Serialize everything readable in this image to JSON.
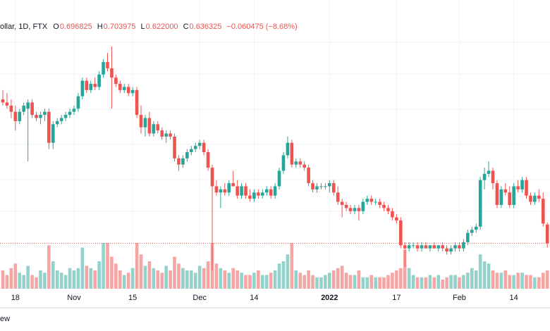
{
  "chart_data": {
    "type": "candlestick",
    "title": "ollar, 1D, FTX",
    "ohlc_legend": [
      {
        "key": "O",
        "text": "0.696825"
      },
      {
        "key": "H",
        "text": "0.703975"
      },
      {
        "key": "L",
        "text": "0.622000"
      },
      {
        "key": "C",
        "text": "0.636325"
      }
    ],
    "change": "−0.060475 (−8.68%)",
    "footer": "ew",
    "up_color": "#26a69a",
    "down_color": "#ef5350",
    "volume_up_color": "#92d2cb",
    "volume_down_color": "#f5a6a4",
    "ylim": [
      0.49,
      1.42
    ],
    "categories": [
      null,
      null,
      null,
      "18",
      null,
      null,
      null,
      null,
      null,
      null,
      null,
      null,
      null,
      null,
      null,
      null,
      null,
      "Nov",
      null,
      null,
      null,
      null,
      null,
      null,
      null,
      null,
      null,
      null,
      null,
      null,
      null,
      "15",
      null,
      null,
      null,
      null,
      null,
      null,
      null,
      null,
      null,
      null,
      null,
      null,
      null,
      null,
      null,
      "Dec",
      null,
      null,
      null,
      null,
      null,
      null,
      null,
      null,
      null,
      null,
      null,
      null,
      "14",
      null,
      null,
      null,
      null,
      null,
      null,
      null,
      null,
      null,
      null,
      null,
      null,
      null,
      null,
      null,
      null,
      null,
      "2022",
      null,
      null,
      null,
      null,
      null,
      null,
      null,
      null,
      null,
      null,
      null,
      null,
      null,
      null,
      null,
      "17",
      null,
      null,
      null,
      null,
      null,
      null,
      null,
      null,
      null,
      null,
      null,
      null,
      null,
      null,
      "Feb",
      null,
      null,
      null,
      null,
      null,
      null,
      null,
      null,
      null,
      null,
      null,
      null,
      "14",
      null,
      null,
      null,
      null,
      null,
      null,
      null,
      null
    ],
    "open": [
      1.1,
      1.09,
      1.08,
      1.06,
      1.03,
      1.06,
      1.07,
      1.09,
      1.05,
      1.04,
      1.05,
      1.06,
      0.96,
      1.02,
      1.03,
      1.04,
      1.05,
      1.06,
      1.07,
      1.11,
      1.16,
      1.13,
      1.15,
      1.14,
      1.18,
      1.22,
      1.2,
      1.17,
      1.15,
      1.13,
      1.14,
      1.12,
      1.13,
      1.05,
      1.01,
      1.04,
      0.99,
      1.02,
      1.0,
      0.98,
      0.99,
      0.98,
      0.91,
      0.89,
      0.91,
      0.93,
      0.94,
      0.95,
      0.96,
      0.93,
      0.88,
      0.82,
      0.8,
      0.81,
      0.8,
      0.83,
      0.82,
      0.79,
      0.82,
      0.79,
      0.78,
      0.8,
      0.79,
      0.8,
      0.81,
      0.79,
      0.82,
      0.87,
      0.92,
      0.96,
      0.89,
      0.9,
      0.89,
      0.88,
      0.83,
      0.81,
      0.82,
      0.82,
      0.82,
      0.83,
      0.8,
      0.77,
      0.76,
      0.75,
      0.74,
      0.75,
      0.74,
      0.77,
      0.78,
      0.77,
      0.77,
      0.76,
      0.75,
      0.74,
      0.72,
      0.71,
      0.63,
      0.62,
      0.63,
      0.63,
      0.62,
      0.63,
      0.62,
      0.63,
      0.62,
      0.63,
      0.62,
      0.61,
      0.62,
      0.63,
      0.62,
      0.64,
      0.67,
      0.68,
      0.69,
      0.84,
      0.86,
      0.87,
      0.83,
      0.76,
      0.81,
      0.8,
      0.76,
      0.82,
      0.81,
      0.84,
      0.79,
      0.77,
      0.79,
      0.78,
      0.696825
    ],
    "high": [
      1.13,
      1.12,
      1.1,
      1.08,
      1.07,
      1.09,
      1.1,
      1.1,
      1.06,
      1.06,
      1.07,
      1.07,
      1.03,
      1.04,
      1.05,
      1.06,
      1.07,
      1.08,
      1.12,
      1.17,
      1.17,
      1.16,
      1.17,
      1.19,
      1.23,
      1.25,
      1.27,
      1.18,
      1.16,
      1.15,
      1.15,
      1.14,
      1.14,
      1.08,
      1.05,
      1.06,
      1.03,
      1.03,
      1.01,
      1.0,
      1.0,
      0.99,
      0.92,
      0.92,
      0.94,
      0.95,
      0.96,
      0.97,
      0.97,
      0.94,
      0.89,
      0.84,
      0.82,
      0.83,
      0.84,
      0.87,
      0.84,
      0.83,
      0.83,
      0.81,
      0.81,
      0.81,
      0.81,
      0.82,
      0.82,
      0.83,
      0.88,
      0.93,
      0.98,
      0.97,
      0.91,
      0.91,
      0.9,
      0.89,
      0.84,
      0.83,
      0.83,
      0.83,
      0.84,
      0.84,
      0.82,
      0.78,
      0.77,
      0.76,
      0.76,
      0.76,
      0.78,
      0.79,
      0.79,
      0.78,
      0.78,
      0.77,
      0.76,
      0.75,
      0.73,
      0.72,
      0.64,
      0.64,
      0.64,
      0.64,
      0.64,
      0.64,
      0.63,
      0.64,
      0.63,
      0.64,
      0.63,
      0.63,
      0.64,
      0.64,
      0.65,
      0.68,
      0.69,
      0.7,
      0.85,
      0.88,
      0.9,
      0.88,
      0.84,
      0.82,
      0.83,
      0.82,
      0.83,
      0.84,
      0.85,
      0.85,
      0.8,
      0.8,
      0.81,
      0.8,
      0.703975
    ],
    "low": [
      1.08,
      1.07,
      1.04,
      1.0,
      1.02,
      1.05,
      0.9,
      1.04,
      1.03,
      1.02,
      1.03,
      0.94,
      0.94,
      1.01,
      1.02,
      1.03,
      1.04,
      1.05,
      1.06,
      1.1,
      1.12,
      1.12,
      1.13,
      1.13,
      1.17,
      1.19,
      1.07,
      1.14,
      1.12,
      1.12,
      1.11,
      1.11,
      1.04,
      0.99,
      0.98,
      0.98,
      0.98,
      0.99,
      0.97,
      0.96,
      0.97,
      0.9,
      0.87,
      0.88,
      0.9,
      0.92,
      0.93,
      0.94,
      0.92,
      0.87,
      0.55,
      0.79,
      0.75,
      0.79,
      0.79,
      0.82,
      0.78,
      0.78,
      0.78,
      0.77,
      0.77,
      0.78,
      0.78,
      0.79,
      0.78,
      0.78,
      0.81,
      0.86,
      0.91,
      0.88,
      0.88,
      0.88,
      0.87,
      0.82,
      0.8,
      0.8,
      0.81,
      0.81,
      0.8,
      0.79,
      0.76,
      0.72,
      0.74,
      0.73,
      0.73,
      0.71,
      0.73,
      0.76,
      0.76,
      0.76,
      0.75,
      0.74,
      0.73,
      0.71,
      0.7,
      0.62,
      0.56,
      0.61,
      0.62,
      0.61,
      0.61,
      0.62,
      0.61,
      0.62,
      0.61,
      0.61,
      0.6,
      0.6,
      0.61,
      0.61,
      0.61,
      0.63,
      0.66,
      0.67,
      0.68,
      0.81,
      0.85,
      0.81,
      0.75,
      0.75,
      0.79,
      0.75,
      0.75,
      0.8,
      0.8,
      0.78,
      0.76,
      0.76,
      0.77,
      0.69,
      0.622
    ],
    "close": [
      1.09,
      1.08,
      1.06,
      1.03,
      1.06,
      1.08,
      1.09,
      1.05,
      1.04,
      1.05,
      1.06,
      0.96,
      1.02,
      1.03,
      1.04,
      1.05,
      1.06,
      1.07,
      1.11,
      1.16,
      1.13,
      1.15,
      1.14,
      1.18,
      1.22,
      1.2,
      1.17,
      1.15,
      1.13,
      1.14,
      1.12,
      1.13,
      1.05,
      1.01,
      1.04,
      0.99,
      1.02,
      1.0,
      0.98,
      0.99,
      0.98,
      0.91,
      0.89,
      0.91,
      0.93,
      0.94,
      0.95,
      0.96,
      0.93,
      0.88,
      0.82,
      0.8,
      0.81,
      0.8,
      0.83,
      0.82,
      0.79,
      0.82,
      0.79,
      0.78,
      0.8,
      0.79,
      0.8,
      0.81,
      0.79,
      0.82,
      0.87,
      0.92,
      0.96,
      0.89,
      0.9,
      0.89,
      0.88,
      0.83,
      0.81,
      0.82,
      0.82,
      0.82,
      0.83,
      0.8,
      0.77,
      0.76,
      0.75,
      0.74,
      0.75,
      0.74,
      0.77,
      0.78,
      0.77,
      0.77,
      0.76,
      0.75,
      0.74,
      0.72,
      0.71,
      0.63,
      0.62,
      0.63,
      0.63,
      0.62,
      0.63,
      0.62,
      0.63,
      0.62,
      0.63,
      0.62,
      0.61,
      0.62,
      0.63,
      0.62,
      0.64,
      0.67,
      0.68,
      0.69,
      0.84,
      0.86,
      0.87,
      0.83,
      0.76,
      0.81,
      0.8,
      0.76,
      0.82,
      0.81,
      0.84,
      0.79,
      0.77,
      0.79,
      0.78,
      0.7,
      0.636325
    ],
    "volume": [
      40,
      30,
      45,
      55,
      35,
      30,
      50,
      30,
      25,
      40,
      35,
      95,
      60,
      40,
      35,
      30,
      45,
      40,
      45,
      90,
      50,
      45,
      40,
      60,
      100,
      100,
      70,
      55,
      40,
      30,
      35,
      45,
      100,
      75,
      50,
      60,
      45,
      40,
      35,
      50,
      40,
      70,
      55,
      45,
      40,
      40,
      35,
      50,
      45,
      60,
      100,
      55,
      45,
      40,
      35,
      45,
      40,
      35,
      30,
      30,
      35,
      40,
      30,
      30,
      35,
      40,
      55,
      60,
      75,
      100,
      40,
      35,
      30,
      40,
      30,
      25,
      25,
      30,
      35,
      40,
      45,
      50,
      35,
      30,
      30,
      40,
      25,
      25,
      30,
      25,
      25,
      25,
      30,
      35,
      40,
      45,
      85,
      45,
      30,
      25,
      25,
      25,
      30,
      25,
      30,
      20,
      25,
      30,
      30,
      25,
      30,
      35,
      45,
      40,
      75,
      60,
      55,
      40,
      35,
      35,
      40,
      30,
      30,
      35,
      35,
      30,
      30,
      25,
      25,
      35,
      40
    ]
  }
}
